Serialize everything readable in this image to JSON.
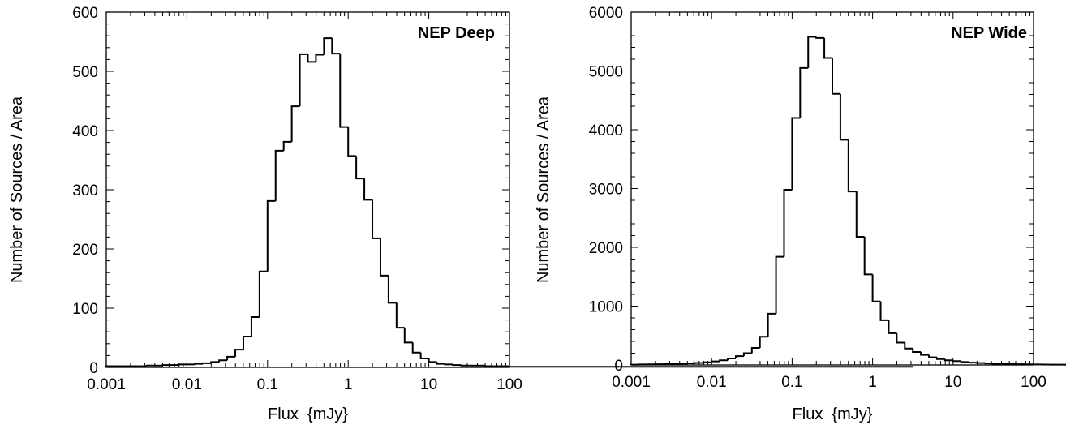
{
  "chart_data": [
    {
      "type": "histogram",
      "title": "NEP Deep",
      "xlabel": "Flux  {mJy}",
      "ylabel": "Number of Sources / Area",
      "xscale": "log",
      "xlim": [
        0.001,
        100
      ],
      "ylim": [
        0,
        600
      ],
      "xticks": [
        "0.001",
        "0.01",
        "0.1",
        "1",
        "10",
        "100"
      ],
      "yticks": [
        "0",
        "100",
        "200",
        "300",
        "400",
        "500",
        "600"
      ],
      "bins_per_decade": 10,
      "values": [
        2,
        2,
        2,
        2,
        2,
        3,
        3,
        4,
        4,
        5,
        5,
        6,
        7,
        9,
        12,
        18,
        30,
        52,
        85,
        162,
        281,
        366,
        381,
        441,
        529,
        516,
        528,
        556,
        530,
        406,
        357,
        319,
        283,
        218,
        155,
        109,
        67,
        42,
        25,
        15,
        9,
        6,
        5,
        4,
        3,
        3,
        3,
        2,
        2,
        2,
        1,
        1,
        1,
        1,
        1,
        1,
        1,
        1,
        1,
        1,
        1,
        1,
        1,
        1,
        1,
        1,
        1,
        1,
        1,
        1,
        1,
        1,
        1,
        1,
        1,
        1,
        1,
        1,
        1,
        1,
        1,
        1,
        1,
        1,
        1,
        1,
        1,
        1,
        1,
        1,
        1,
        1,
        1,
        1,
        1,
        1,
        1,
        1,
        1,
        1
      ],
      "grid": false,
      "legend": "none"
    },
    {
      "type": "histogram",
      "title": "NEP Wide",
      "xlabel": "Flux  {mJy}",
      "ylabel": "Number of Sources / Area",
      "xscale": "log",
      "xlim": [
        0.001,
        100
      ],
      "ylim": [
        0,
        6000
      ],
      "xticks": [
        "0.001",
        "0.01",
        "0.1",
        "1",
        "10",
        "100"
      ],
      "yticks": [
        "0",
        "1000",
        "2000",
        "3000",
        "4000",
        "5000",
        "6000"
      ],
      "bins_per_decade": 10,
      "values": [
        5,
        8,
        10,
        12,
        15,
        18,
        22,
        28,
        35,
        45,
        60,
        80,
        110,
        150,
        200,
        290,
        480,
        870,
        1840,
        2980,
        4200,
        5050,
        5580,
        5560,
        5220,
        4610,
        3830,
        2950,
        2180,
        1540,
        1080,
        760,
        540,
        380,
        280,
        220,
        170,
        130,
        100,
        80,
        65,
        50,
        40,
        32,
        26,
        21,
        17,
        14,
        12,
        10,
        8,
        7,
        6,
        5,
        4,
        4,
        3,
        3,
        2,
        2,
        2,
        2,
        2,
        1,
        1,
        1,
        1,
        1,
        1,
        1,
        1,
        1,
        1,
        1,
        1,
        1,
        1,
        1,
        1,
        1,
        1,
        1,
        1,
        1,
        1,
        1,
        1,
        1,
        1,
        1,
        1,
        1,
        1,
        1,
        1,
        1,
        1,
        1,
        1,
        1
      ],
      "grid": false,
      "legend": "none"
    }
  ]
}
